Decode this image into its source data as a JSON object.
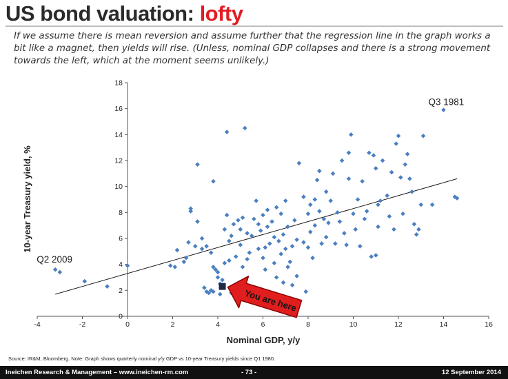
{
  "slide": {
    "title_main": "US bond valuation: ",
    "title_accent": "lofty",
    "subtitle": "If we assume there is mean reversion and assume further that the regression line in the graph works a bit like a magnet, then yields will rise. (Unless, nominal GDP collapses and there is a strong movement towards the left, which at the moment seems unlikely.)",
    "source": "Source: IR&M, Bloomberg. Note: Graph shows quarterly nominal y/y GDP vs 10-year Treasury yields since Q1 1980.",
    "footer_left": "Ineichen Research & Management – www.ineichen-rm.com",
    "footer_center": "- 73 -",
    "footer_right": "12 September 2014"
  },
  "chart_data": {
    "type": "scatter",
    "xlabel": "Nominal GDP, y/y",
    "ylabel": "10-year Treasury yield, %",
    "xlim": [
      -4,
      16
    ],
    "ylim": [
      0,
      18
    ],
    "xticks": [
      -4,
      -2,
      0,
      2,
      4,
      6,
      8,
      10,
      12,
      14,
      16
    ],
    "yticks": [
      0,
      2,
      4,
      6,
      8,
      10,
      12,
      14,
      16,
      18
    ],
    "grid": false,
    "colors": {
      "points": "#4a7fc1",
      "line": "#1a1a1a",
      "current": "#1f2a44",
      "arrow": "#e01e1e",
      "arrow_edge": "#8a0000"
    },
    "regression": {
      "x": [
        -3.2,
        14.6
      ],
      "y": [
        1.7,
        10.6
      ]
    },
    "annotations": [
      {
        "text": "Q3 1981",
        "x": 14.0,
        "y": 15.9
      },
      {
        "text": "Q2 2009",
        "x": -3.2,
        "y": 3.6
      }
    ],
    "current_point": {
      "x": 4.2,
      "y": 2.3
    },
    "arrow_label": "You are here",
    "points": [
      [
        -3.2,
        3.6
      ],
      [
        -3.0,
        3.4
      ],
      [
        -1.9,
        2.7
      ],
      [
        -0.9,
        2.3
      ],
      [
        0.0,
        3.9
      ],
      [
        1.9,
        3.9
      ],
      [
        2.1,
        3.8
      ],
      [
        2.2,
        5.1
      ],
      [
        2.5,
        4.2
      ],
      [
        2.6,
        4.5
      ],
      [
        2.7,
        5.7
      ],
      [
        2.8,
        8.1
      ],
      [
        2.8,
        8.3
      ],
      [
        3.0,
        5.4
      ],
      [
        3.1,
        11.7
      ],
      [
        3.1,
        7.3
      ],
      [
        3.3,
        6.0
      ],
      [
        3.3,
        5.2
      ],
      [
        3.4,
        2.2
      ],
      [
        3.5,
        1.9
      ],
      [
        3.5,
        5.4
      ],
      [
        3.6,
        1.8
      ],
      [
        3.7,
        2.0
      ],
      [
        3.7,
        4.9
      ],
      [
        3.8,
        1.9
      ],
      [
        3.8,
        10.4
      ],
      [
        3.8,
        3.8
      ],
      [
        3.9,
        3.6
      ],
      [
        4.0,
        3.4
      ],
      [
        4.0,
        3.0
      ],
      [
        4.1,
        2.5
      ],
      [
        4.1,
        1.7
      ],
      [
        4.2,
        2.8
      ],
      [
        4.3,
        4.1
      ],
      [
        4.3,
        6.7
      ],
      [
        4.4,
        14.2
      ],
      [
        4.4,
        7.8
      ],
      [
        4.5,
        5.8
      ],
      [
        4.5,
        4.3
      ],
      [
        4.6,
        1.8
      ],
      [
        4.6,
        6.2
      ],
      [
        4.7,
        7.1
      ],
      [
        4.8,
        2.4
      ],
      [
        4.8,
        4.6
      ],
      [
        4.9,
        7.4
      ],
      [
        5.0,
        6.7
      ],
      [
        5.0,
        5.5
      ],
      [
        5.1,
        3.8
      ],
      [
        5.1,
        7.6
      ],
      [
        5.2,
        14.5
      ],
      [
        5.3,
        6.4
      ],
      [
        5.3,
        4.4
      ],
      [
        5.4,
        4.9
      ],
      [
        5.5,
        6.2
      ],
      [
        5.6,
        7.5
      ],
      [
        5.7,
        8.9
      ],
      [
        5.8,
        7.1
      ],
      [
        5.8,
        5.2
      ],
      [
        5.9,
        6.6
      ],
      [
        6.0,
        4.5
      ],
      [
        6.0,
        7.8
      ],
      [
        6.1,
        5.3
      ],
      [
        6.1,
        3.6
      ],
      [
        6.2,
        6.9
      ],
      [
        6.2,
        8.2
      ],
      [
        6.3,
        5.6
      ],
      [
        6.4,
        7.3
      ],
      [
        6.5,
        4.1
      ],
      [
        6.5,
        6.1
      ],
      [
        6.6,
        3.0
      ],
      [
        6.6,
        8.4
      ],
      [
        6.7,
        5.8
      ],
      [
        6.8,
        4.8
      ],
      [
        6.8,
        7.9
      ],
      [
        6.9,
        2.6
      ],
      [
        6.9,
        6.3
      ],
      [
        7.0,
        5.2
      ],
      [
        7.0,
        8.9
      ],
      [
        7.1,
        3.8
      ],
      [
        7.1,
        6.9
      ],
      [
        7.2,
        4.2
      ],
      [
        7.3,
        5.4
      ],
      [
        7.3,
        2.4
      ],
      [
        7.4,
        7.4
      ],
      [
        7.5,
        3.1
      ],
      [
        7.5,
        5.9
      ],
      [
        7.6,
        11.8
      ],
      [
        7.8,
        5.7
      ],
      [
        7.8,
        9.2
      ],
      [
        7.9,
        1.9
      ],
      [
        8.0,
        5.3
      ],
      [
        8.0,
        7.9
      ],
      [
        8.1,
        8.6
      ],
      [
        8.1,
        6.5
      ],
      [
        8.2,
        4.5
      ],
      [
        8.3,
        9.0
      ],
      [
        8.3,
        7.0
      ],
      [
        8.4,
        10.5
      ],
      [
        8.5,
        11.2
      ],
      [
        8.5,
        8.1
      ],
      [
        8.6,
        5.6
      ],
      [
        8.7,
        7.5
      ],
      [
        8.8,
        9.6
      ],
      [
        8.8,
        6.1
      ],
      [
        8.9,
        7.2
      ],
      [
        9.0,
        8.9
      ],
      [
        9.1,
        11.0
      ],
      [
        9.2,
        5.6
      ],
      [
        9.3,
        8.0
      ],
      [
        9.4,
        7.3
      ],
      [
        9.5,
        12.0
      ],
      [
        9.6,
        6.4
      ],
      [
        9.7,
        5.5
      ],
      [
        9.8,
        12.6
      ],
      [
        9.8,
        10.6
      ],
      [
        9.9,
        14.0
      ],
      [
        10.0,
        7.9
      ],
      [
        10.1,
        6.7
      ],
      [
        10.2,
        9.0
      ],
      [
        10.3,
        5.4
      ],
      [
        10.4,
        10.4
      ],
      [
        10.5,
        7.5
      ],
      [
        10.6,
        8.1
      ],
      [
        10.7,
        12.6
      ],
      [
        10.8,
        4.6
      ],
      [
        10.9,
        12.4
      ],
      [
        11.0,
        11.4
      ],
      [
        11.0,
        4.7
      ],
      [
        11.1,
        8.6
      ],
      [
        11.1,
        6.9
      ],
      [
        11.2,
        8.9
      ],
      [
        11.3,
        12.0
      ],
      [
        11.5,
        9.3
      ],
      [
        11.6,
        7.7
      ],
      [
        11.7,
        11.1
      ],
      [
        11.8,
        6.7
      ],
      [
        11.9,
        13.3
      ],
      [
        12.0,
        13.9
      ],
      [
        12.1,
        10.7
      ],
      [
        12.2,
        7.9
      ],
      [
        12.3,
        11.7
      ],
      [
        12.4,
        12.5
      ],
      [
        12.5,
        10.6
      ],
      [
        12.6,
        9.6
      ],
      [
        12.7,
        7.1
      ],
      [
        12.8,
        6.3
      ],
      [
        12.9,
        6.7
      ],
      [
        13.0,
        8.6
      ],
      [
        13.1,
        13.9
      ],
      [
        13.5,
        8.6
      ],
      [
        14.0,
        15.9
      ],
      [
        14.5,
        9.2
      ],
      [
        14.6,
        9.1
      ]
    ]
  }
}
